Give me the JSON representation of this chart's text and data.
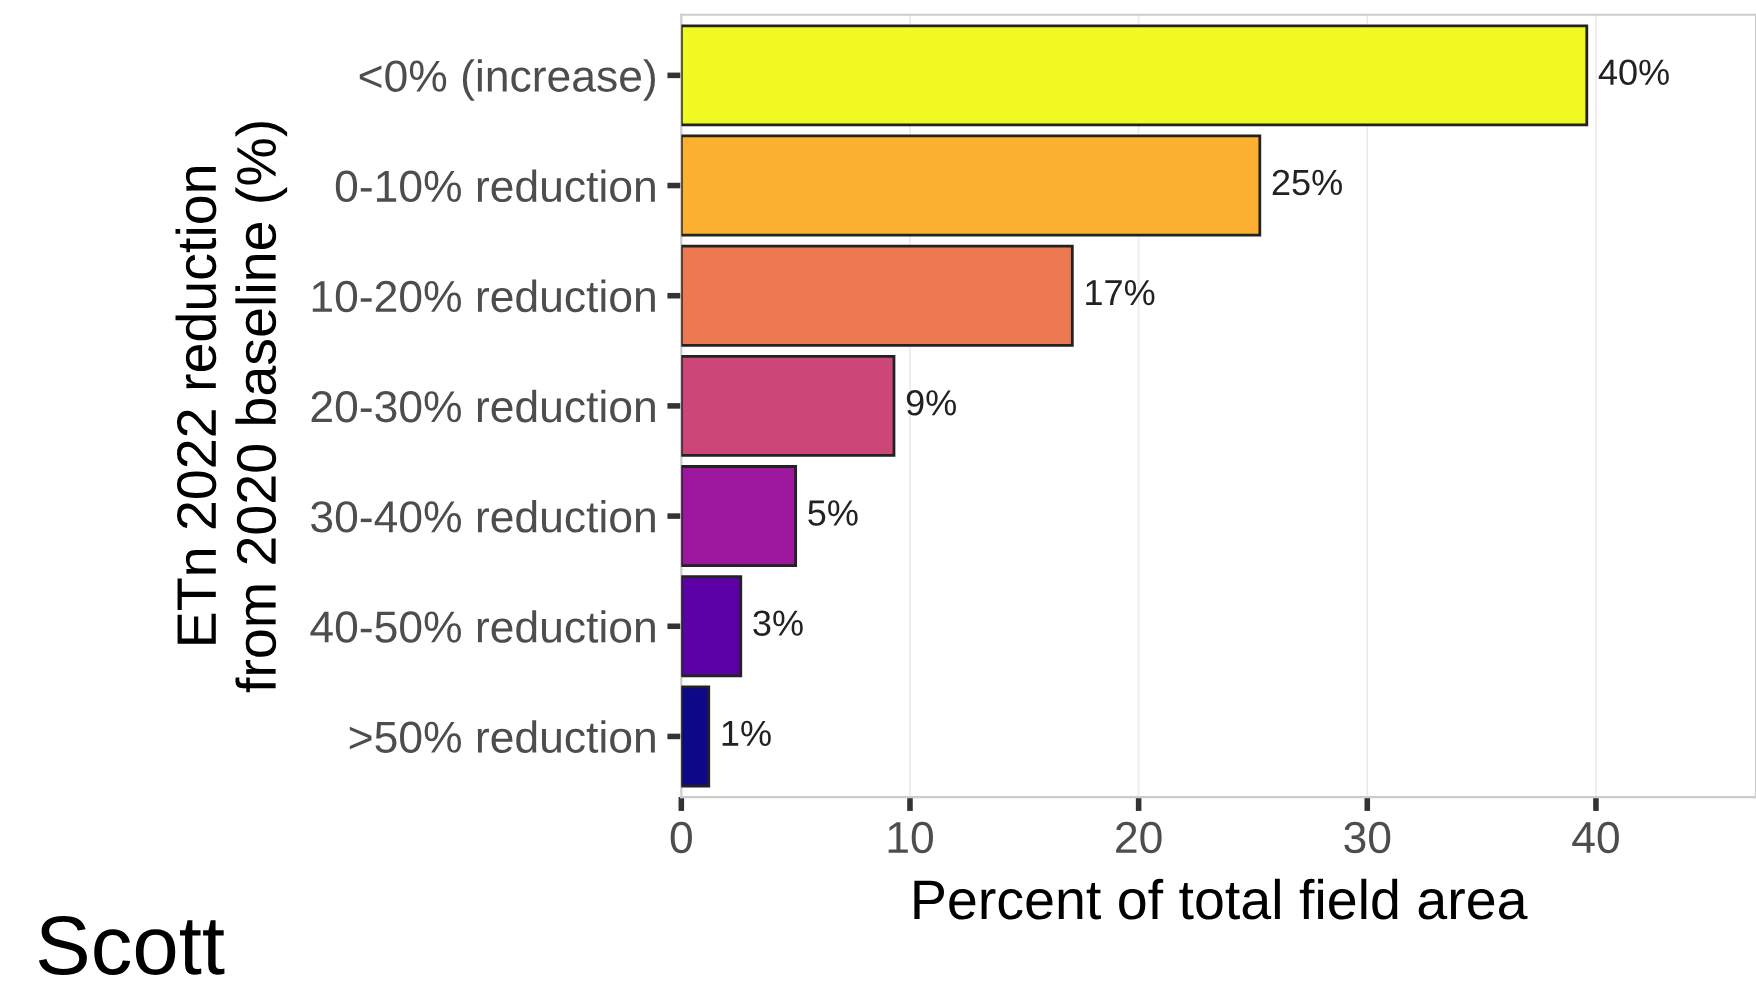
{
  "chart_data": {
    "type": "bar",
    "orientation": "horizontal",
    "categories": [
      "<0% (increase)",
      "0-10% reduction",
      "10-20% reduction",
      "20-30% reduction",
      "30-40% reduction",
      "40-50% reduction",
      ">50% reduction"
    ],
    "values": [
      39.6,
      25.3,
      17.1,
      9.3,
      5.0,
      2.6,
      1.2
    ],
    "value_labels": [
      "40%",
      "25%",
      "17%",
      "9%",
      "5%",
      "3%",
      "1%"
    ],
    "colors": [
      "#f0f921",
      "#fcb030",
      "#ed7953",
      "#cc4778",
      "#9c179e",
      "#5c01a6",
      "#0d0887"
    ],
    "xlabel": "Percent of total field area",
    "ylabel": "ETn 2022 reduction\nfrom 2020 baseline (%)",
    "xlim": [
      0,
      47
    ],
    "xticks": [
      0,
      10,
      20,
      30,
      40
    ],
    "grid": "x",
    "annotations": [
      "Scott"
    ]
  }
}
